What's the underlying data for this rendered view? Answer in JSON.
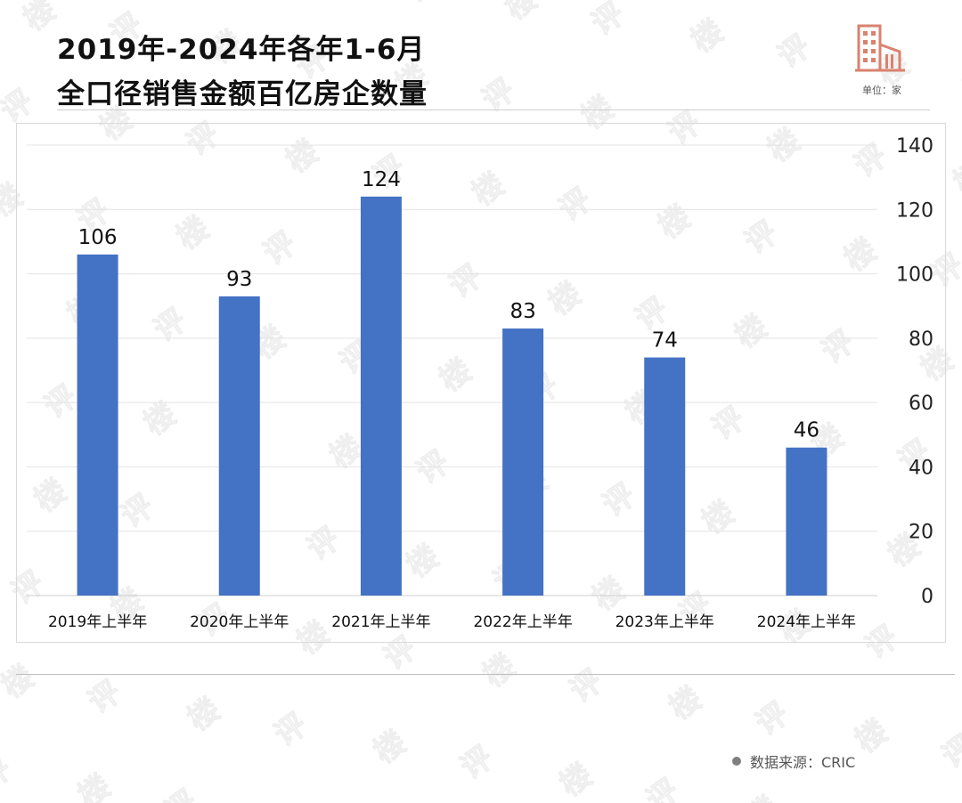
{
  "header": {
    "title_line_1": "2019年-2024年各年1-6月",
    "title_line_2": "全口径销售金额百亿房企数量",
    "unit_label": "单位：家",
    "icon": "building-icon",
    "accent_color": "#d9826e"
  },
  "footer": {
    "source": "数据来源：CRIC"
  },
  "chart_data": {
    "type": "bar",
    "title": "2019年-2024年各年1-6月全口径销售金额百亿房企数量",
    "categories": [
      "2019年上半年",
      "2020年上半年",
      "2021年上半年",
      "2022年上半年",
      "2023年上半年",
      "2024年上半年"
    ],
    "series": [
      {
        "name": "百亿房企数量",
        "values": [
          106,
          93,
          124,
          83,
          74,
          46
        ]
      }
    ],
    "data_labels": [
      "106",
      "93",
      "124",
      "83",
      "74",
      "46"
    ],
    "xlabel": "",
    "ylabel": "",
    "ylim": [
      0,
      140
    ],
    "yticks": [
      0,
      20,
      40,
      60,
      80,
      100,
      120,
      140
    ],
    "y_axis_side": "right",
    "grid": true,
    "bar_color": "#4472c4"
  }
}
